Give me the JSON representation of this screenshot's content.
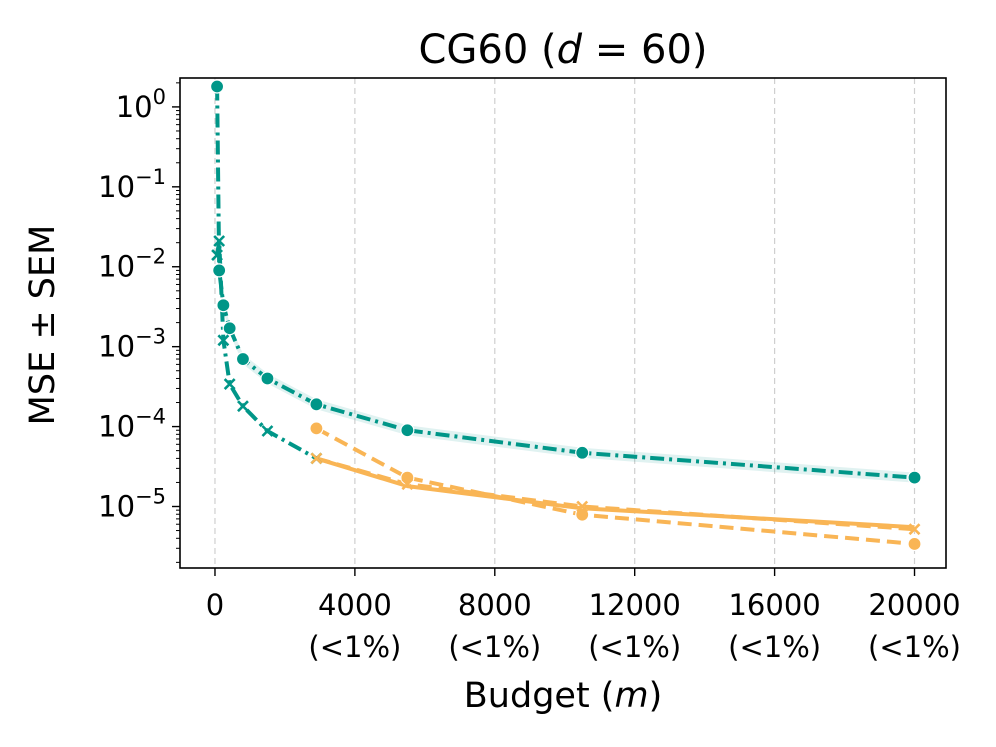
{
  "chart_data": {
    "type": "line",
    "title": {
      "main": "CG60 (",
      "var": "d",
      "rest": " = 60)"
    },
    "xlabel": {
      "main": "Budget (",
      "var": "m",
      "close": ")"
    },
    "ylabel": "MSE ± SEM",
    "yscale": "log",
    "xlim": [
      -1000,
      20900
    ],
    "ylim": [
      1.7e-06,
      2.3
    ],
    "grid": "x-dashed",
    "x_ticks": [
      {
        "value": 0,
        "label": "0",
        "sub": ""
      },
      {
        "value": 4000,
        "label": "4000",
        "sub": "(<1%)"
      },
      {
        "value": 8000,
        "label": "8000",
        "sub": "(<1%)"
      },
      {
        "value": 12000,
        "label": "12000",
        "sub": "(<1%)"
      },
      {
        "value": 16000,
        "label": "16000",
        "sub": "(<1%)"
      },
      {
        "value": 20000,
        "label": "20000",
        "sub": "(<1%)"
      }
    ],
    "y_ticks": [
      {
        "value": 1,
        "base": "10",
        "exp": "0"
      },
      {
        "value": 0.1,
        "base": "10",
        "exp": "−1"
      },
      {
        "value": 0.01,
        "base": "10",
        "exp": "−2"
      },
      {
        "value": 0.001,
        "base": "10",
        "exp": "−3"
      },
      {
        "value": 0.0001,
        "base": "10",
        "exp": "−4"
      },
      {
        "value": 1e-05,
        "base": "10",
        "exp": "−5"
      }
    ],
    "series": [
      {
        "color": "#009688",
        "dash": "dashdot",
        "marker": "circle",
        "band": true,
        "x": [
          60,
          120,
          240,
          420,
          800,
          1500,
          2900,
          5500,
          10500,
          20000
        ],
        "y": [
          1.8,
          0.009,
          0.0033,
          0.0017,
          0.0007,
          0.0004,
          0.00019,
          9e-05,
          4.7e-05,
          2.3e-05
        ]
      },
      {
        "color": "#009688",
        "dash": "dashdot",
        "marker": "x",
        "band": false,
        "x": [
          60,
          120,
          240,
          420,
          800,
          1500,
          2900
        ],
        "y": [
          0.014,
          0.021,
          0.0012,
          0.00034,
          0.00018,
          8.8e-05,
          4e-05
        ]
      },
      {
        "color": "#F9B555",
        "dash": "dashed",
        "marker": "circle",
        "band": false,
        "x": [
          2900,
          5500,
          10500,
          20000
        ],
        "y": [
          9.5e-05,
          2.3e-05,
          7.9e-06,
          3.4e-06
        ]
      },
      {
        "color": "#F9B555",
        "dash": "dashed",
        "marker": "x",
        "band": false,
        "x": [
          2900,
          5500,
          10500,
          20000
        ],
        "y": [
          4e-05,
          1.9e-05,
          1e-05,
          5.2e-06
        ]
      },
      {
        "color": "#F9B555",
        "dash": "solid",
        "marker": "none",
        "band": false,
        "x": [
          2900,
          5500,
          10500,
          20000
        ],
        "y": [
          4e-05,
          1.8e-05,
          9.5e-06,
          5.5e-06
        ]
      }
    ]
  }
}
